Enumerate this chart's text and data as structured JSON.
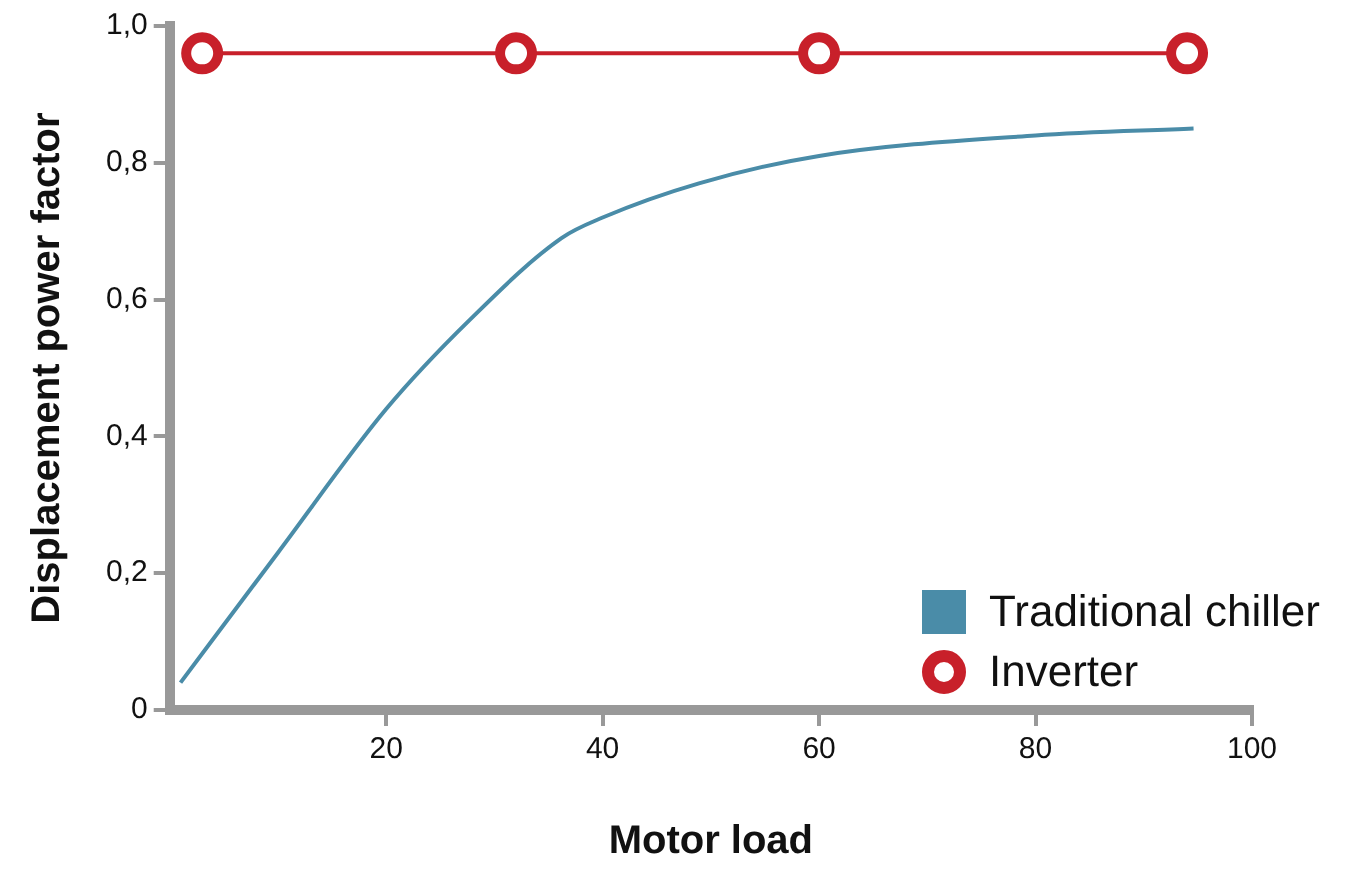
{
  "chart_data": {
    "type": "line",
    "xlabel": "Motor load",
    "ylabel": "Displacement power factor",
    "xlim": [
      0,
      100
    ],
    "xticks": [
      20,
      40,
      60,
      80,
      100
    ],
    "ylim": [
      0,
      1
    ],
    "yticks": [
      0,
      {
        "value": 0.2,
        "label": "0,2"
      },
      {
        "value": 0.4,
        "label": "0,4"
      },
      {
        "value": 0.6,
        "label": "0,6"
      },
      {
        "value": 0.8,
        "label": "0,8"
      },
      {
        "value": 1.0,
        "label": "1,0"
      }
    ],
    "legend": "bottom right",
    "series": [
      {
        "name": "Traditional chiller",
        "color": "#4a8ca8",
        "marker": "none",
        "x": [
          1,
          10,
          20,
          27.7,
          36.2,
          40,
          48.9,
          60,
          80,
          94.6
        ],
        "values": [
          0.04,
          0.23,
          0.44,
          0.57,
          0.69,
          0.72,
          0.77,
          0.81,
          0.84,
          0.85
        ]
      },
      {
        "name": "Inverter",
        "color": "#c8202a",
        "marker": "circle",
        "x": [
          3,
          32,
          60,
          94
        ],
        "values": [
          0.96,
          0.96,
          0.96,
          0.96
        ]
      }
    ]
  }
}
